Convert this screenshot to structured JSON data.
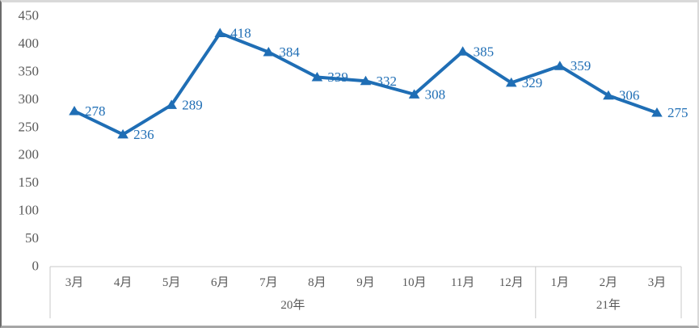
{
  "chart_data": {
    "type": "line",
    "title": "",
    "xlabel": "",
    "ylabel": "",
    "categories": [
      "3月",
      "4月",
      "5月",
      "6月",
      "7月",
      "8月",
      "9月",
      "10月",
      "11月",
      "12月",
      "1月",
      "2月",
      "3月"
    ],
    "values": [
      278,
      236,
      289,
      418,
      384,
      339,
      332,
      308,
      385,
      329,
      359,
      306,
      275
    ],
    "year_groups": [
      {
        "label": "20年",
        "start": 0,
        "end": 9
      },
      {
        "label": "21年",
        "start": 10,
        "end": 12
      }
    ],
    "ylim": [
      0,
      450
    ],
    "yticks": [
      0,
      50,
      100,
      150,
      200,
      250,
      300,
      350,
      400,
      450
    ],
    "grid": "off",
    "legend": "none",
    "marker": "triangle-up",
    "data_label_position": "right",
    "line_color": "#1f6eb5",
    "axis_text_color": "#595959",
    "axis_line_color": "#c9c9c9"
  }
}
